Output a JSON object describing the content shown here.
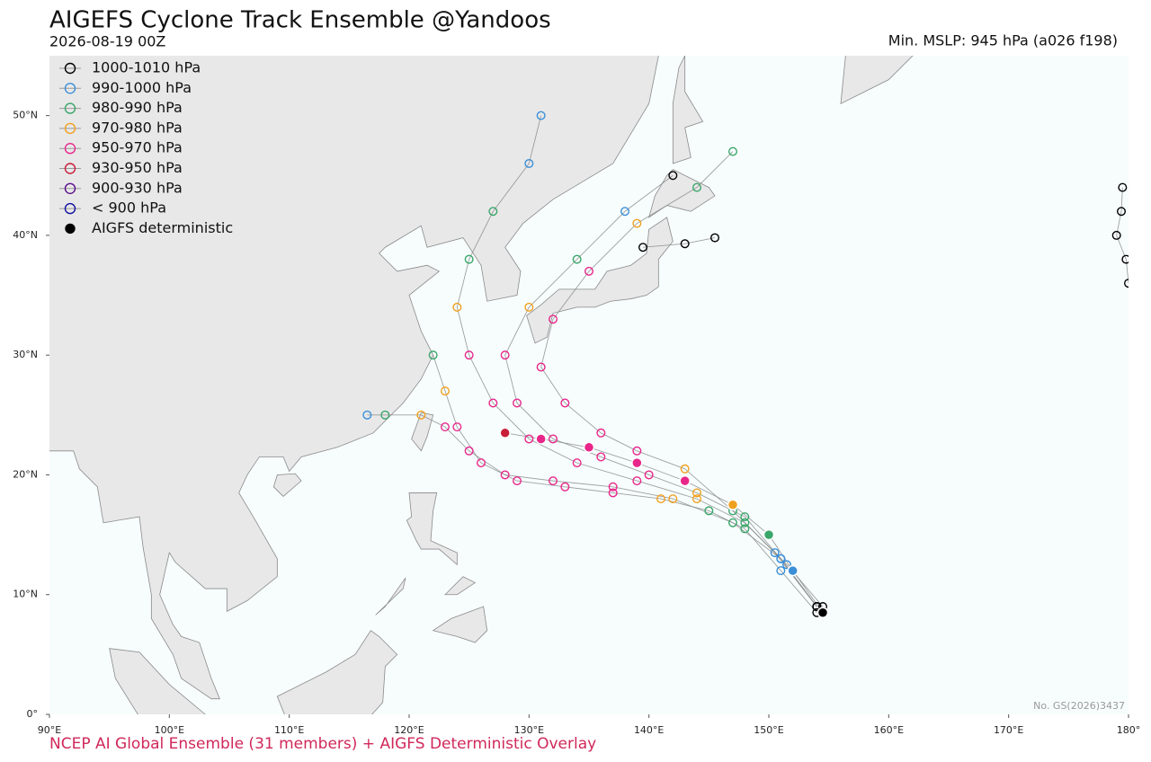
{
  "title": "AIGEFS Cyclone Track Ensemble @Yandoos",
  "subtitle": "2026-08-19 00Z",
  "info": "Min. MSLP: 945 hPa (a026 f198)",
  "footer": "NCEP AI Global Ensemble (31 members) + AIGFS Deterministic Overlay",
  "watermark": "No. GS(2026)3437",
  "map": {
    "xlim": [
      90,
      180
    ],
    "ylim": [
      0,
      55
    ],
    "xticks": [
      {
        "value": 90,
        "label": "90°E"
      },
      {
        "value": 100,
        "label": "100°E"
      },
      {
        "value": 110,
        "label": "110°E"
      },
      {
        "value": 120,
        "label": "120°E"
      },
      {
        "value": 130,
        "label": "130°E"
      },
      {
        "value": 140,
        "label": "140°E"
      },
      {
        "value": 150,
        "label": "150°E"
      },
      {
        "value": 160,
        "label": "160°E"
      },
      {
        "value": 170,
        "label": "170°E"
      },
      {
        "value": 180,
        "label": "180°"
      }
    ],
    "yticks": [
      {
        "value": 0,
        "label": "0°"
      },
      {
        "value": 10,
        "label": "10°N"
      },
      {
        "value": 20,
        "label": "20°N"
      },
      {
        "value": 30,
        "label": "30°N"
      },
      {
        "value": 40,
        "label": "40°N"
      },
      {
        "value": 50,
        "label": "50°N"
      }
    ]
  },
  "legend": [
    {
      "label": "1000-1010 hPa",
      "color": "#000000",
      "range": [
        1000,
        1010
      ]
    },
    {
      "label": "990-1000 hPa",
      "color": "#3a8fd8",
      "range": [
        990,
        1000
      ]
    },
    {
      "label": "980-990 hPa",
      "color": "#3aa66a",
      "range": [
        980,
        990
      ]
    },
    {
      "label": "970-980 hPa",
      "color": "#f0a020",
      "range": [
        970,
        980
      ]
    },
    {
      "label": "950-970 hPa",
      "color": "#e8268a",
      "range": [
        950,
        970
      ]
    },
    {
      "label": "930-950 hPa",
      "color": "#c81e3a",
      "range": [
        930,
        950
      ]
    },
    {
      "label": "900-930 hPa",
      "color": "#5a0a8a",
      "range": [
        900,
        930
      ]
    },
    {
      "label": "< 900 hPa",
      "color": "#1010a0",
      "range": [
        900
      ]
    },
    {
      "label": "AIGFS deterministic",
      "color": "#000000",
      "filled": true
    }
  ],
  "tracks": [
    {
      "lon": [
        154,
        151,
        148,
        144,
        140,
        136,
        132,
        129,
        128,
        130,
        134,
        138,
        142
      ],
      "lat": [
        9,
        13,
        16.5,
        18.5,
        20,
        21.5,
        23,
        26,
        30,
        34,
        38,
        42,
        45
      ],
      "pressure": [
        1004,
        995,
        985,
        972,
        965,
        960,
        958,
        960,
        965,
        975,
        985,
        995,
        1004
      ]
    },
    {
      "lon": [
        154,
        151,
        147,
        142,
        137,
        132,
        128,
        125,
        123,
        121,
        118,
        116.5
      ],
      "lat": [
        9,
        13,
        16,
        18,
        19,
        19.5,
        20,
        22,
        24,
        25,
        25,
        25
      ],
      "pressure": [
        1004,
        996,
        986,
        975,
        968,
        962,
        958,
        958,
        962,
        975,
        985,
        995
      ]
    },
    {
      "lon": [
        154.5,
        151.5,
        148,
        144,
        139,
        134,
        130,
        127,
        125,
        124,
        125,
        127,
        130,
        131
      ],
      "lat": [
        9,
        12.5,
        16,
        18,
        19.5,
        21,
        23,
        26,
        30,
        34,
        38,
        42,
        46,
        50
      ],
      "pressure": [
        1005,
        997,
        988,
        978,
        968,
        962,
        958,
        958,
        965,
        972,
        980,
        988,
        995,
        998
      ]
    },
    {
      "lon": [
        154,
        151,
        148,
        145,
        141,
        137,
        133,
        129,
        126,
        124,
        123,
        122
      ],
      "lat": [
        8.5,
        12,
        15.5,
        17,
        18,
        18.5,
        19,
        19.5,
        21,
        24,
        27,
        30
      ],
      "pressure": [
        1004,
        996,
        988,
        980,
        975,
        968,
        962,
        958,
        960,
        965,
        975,
        985
      ]
    },
    {
      "lon": [
        154,
        150.5,
        147,
        143,
        139,
        136,
        133,
        131,
        132,
        135,
        139,
        144,
        147
      ],
      "lat": [
        9,
        13.5,
        17,
        20.5,
        22,
        23.5,
        26,
        29,
        33,
        37,
        41,
        44,
        47
      ],
      "pressure": [
        1004,
        995,
        985,
        972,
        962,
        958,
        955,
        958,
        962,
        968,
        975,
        985,
        988
      ]
    },
    {
      "lon": [
        139.5,
        143,
        145.5
      ],
      "lat": [
        39,
        39.3,
        39.8
      ],
      "pressure": [
        1004,
        1006,
        1008
      ]
    },
    {
      "lon": [
        179.5,
        179.4,
        179,
        179.8,
        180
      ],
      "lat": [
        44,
        42,
        40,
        38,
        36
      ],
      "pressure": [
        1008,
        1007,
        1006,
        1006,
        1007
      ]
    },
    {
      "lon": [
        154.5,
        152,
        150,
        147,
        143,
        139,
        135,
        131,
        128
      ],
      "lat": [
        8.5,
        12,
        15,
        17.5,
        19.5,
        21,
        22.3,
        23,
        23.5
      ],
      "pressure": [
        1006,
        998,
        985,
        975,
        965,
        960,
        955,
        950,
        945
      ],
      "filled": true
    }
  ]
}
